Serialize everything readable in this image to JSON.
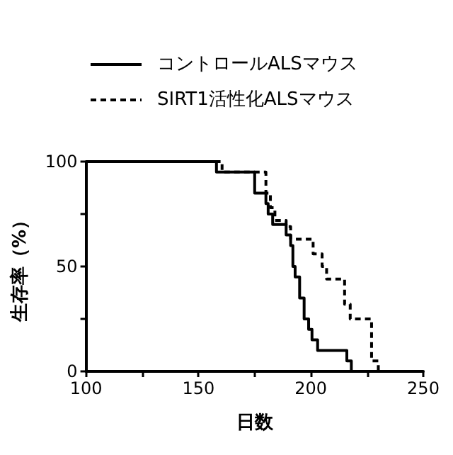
{
  "chart_data": {
    "type": "step",
    "xlabel": "日数",
    "ylabel": "生存率（%）",
    "xlim": [
      100,
      250
    ],
    "xticks": [
      100,
      {
        "value": 125,
        "label": null
      },
      150,
      {
        "value": 175,
        "label": null
      },
      200,
      {
        "value": 225,
        "label": null
      },
      250
    ],
    "ylim": [
      0,
      100
    ],
    "yticks": [
      0,
      {
        "value": 25,
        "label": null
      },
      50,
      {
        "value": 75,
        "label": null
      },
      100
    ],
    "grid": false,
    "legend": "top left",
    "marker": "none",
    "series": [
      {
        "name": "コントロールALSマウス",
        "color": "#000000",
        "line_style": "solid",
        "x": [
          100,
          158,
          175,
          180,
          181,
          183,
          189,
          191,
          192,
          193,
          195,
          197,
          199,
          200.5,
          203,
          216,
          218
        ],
        "values": [
          100,
          95,
          85,
          80,
          75,
          70,
          65,
          60,
          50,
          45,
          35,
          25,
          20,
          15,
          10,
          5,
          0
        ]
      },
      {
        "name": "SIRT1活性化ALSマウス",
        "color": "#000000",
        "line_style": "dashed",
        "x": [
          100,
          160.5,
          180,
          182,
          184,
          189,
          191,
          201,
          205,
          207,
          215,
          217.5,
          227,
          230
        ],
        "values": [
          100,
          95,
          85,
          78,
          72,
          69,
          63,
          56,
          50,
          44,
          32,
          25,
          5,
          0
        ]
      }
    ]
  }
}
